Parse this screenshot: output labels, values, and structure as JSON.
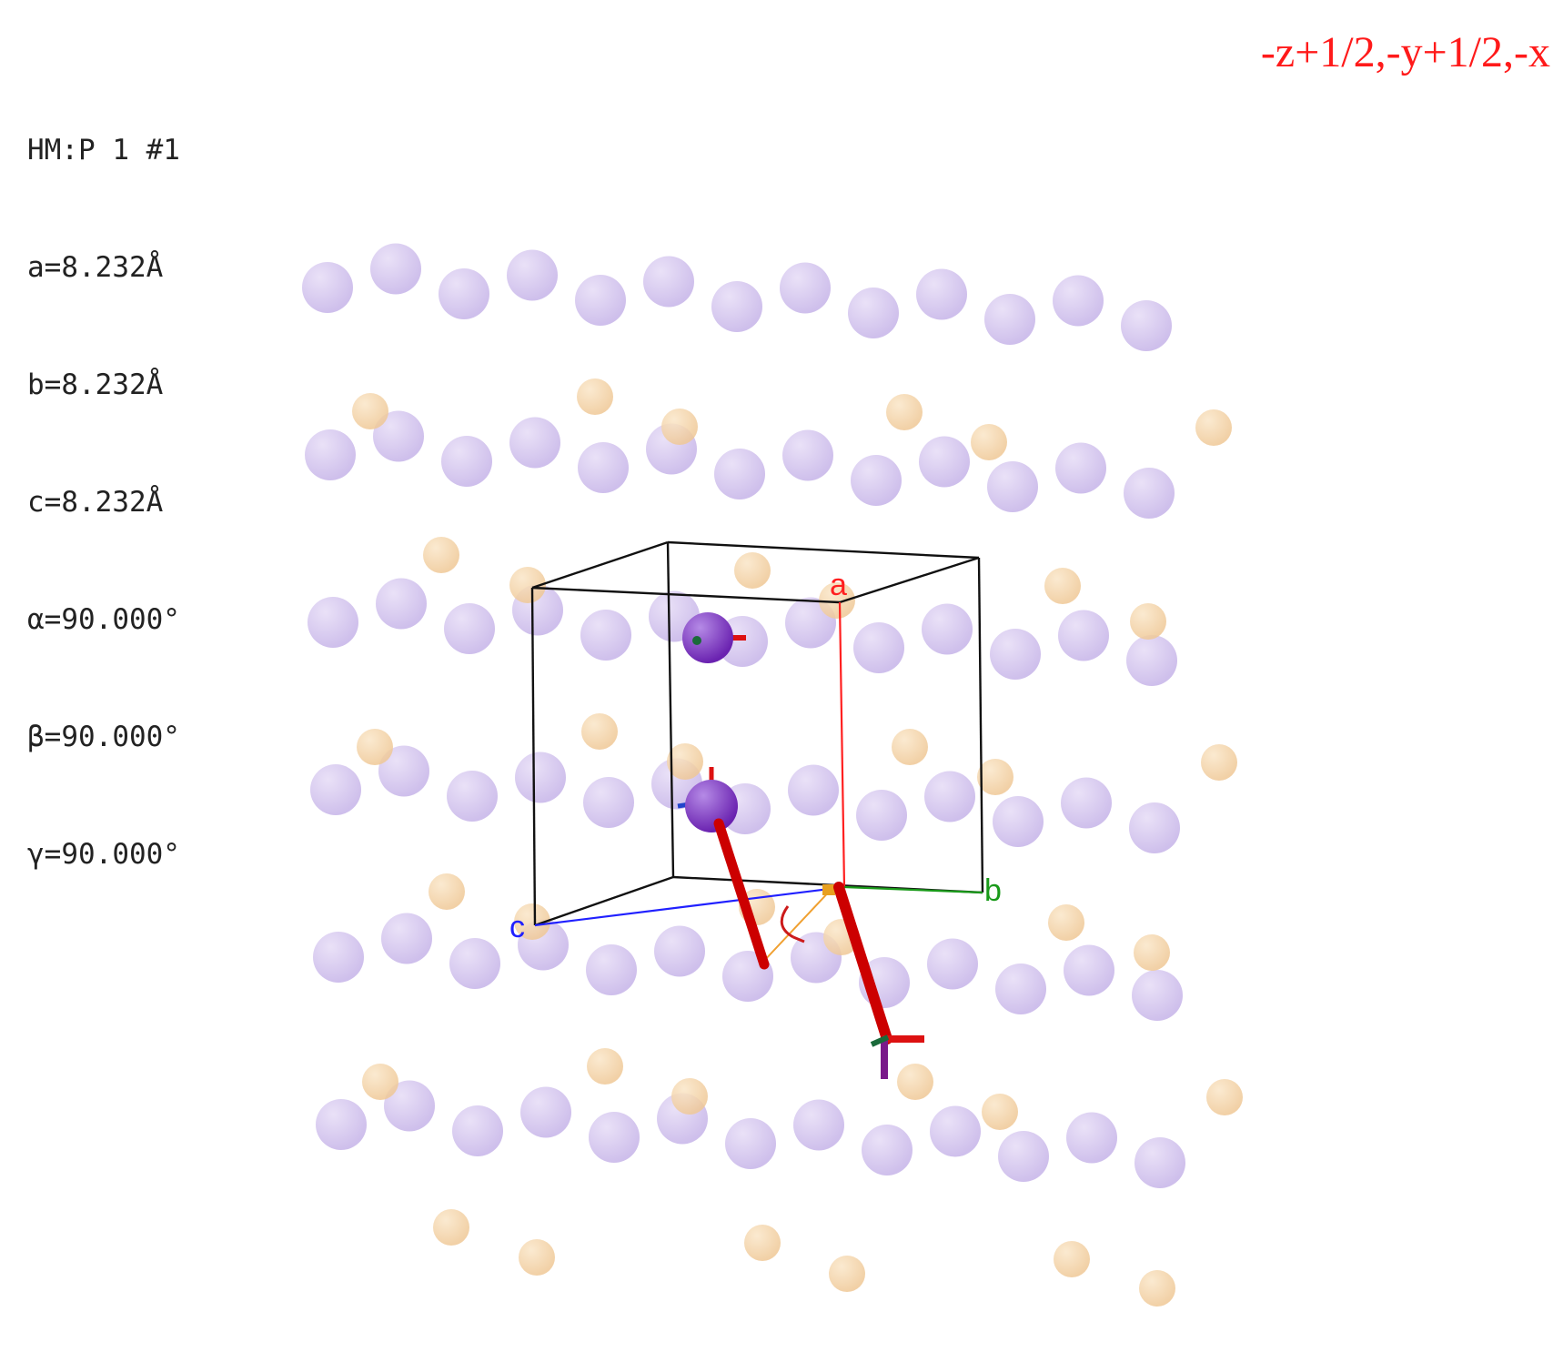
{
  "cell_info": {
    "space_group": "HM:P 1 #1",
    "a": "a=8.232Å",
    "b": "b=8.232Å",
    "c": "c=8.232Å",
    "alpha": "α=90.000°",
    "beta": "β=90.000°",
    "gamma": "γ=90.000°"
  },
  "symmetry_operation": "-z+1/2,-y+1/2,-x",
  "axes": {
    "a_label": "a",
    "b_label": "b",
    "c_label": "c",
    "a_color": "#ff2020",
    "b_color": "#1a9a1a",
    "c_color": "#2020ff"
  },
  "colors": {
    "ghost_large_atom": "#c9b8ea",
    "ghost_small_atom": "#f2cf9e",
    "highlight_atom": "#7a2fc0",
    "rotation_axis": "#cc0000",
    "cell_edges": "#111111",
    "symop_text": "#ff1a1a"
  }
}
